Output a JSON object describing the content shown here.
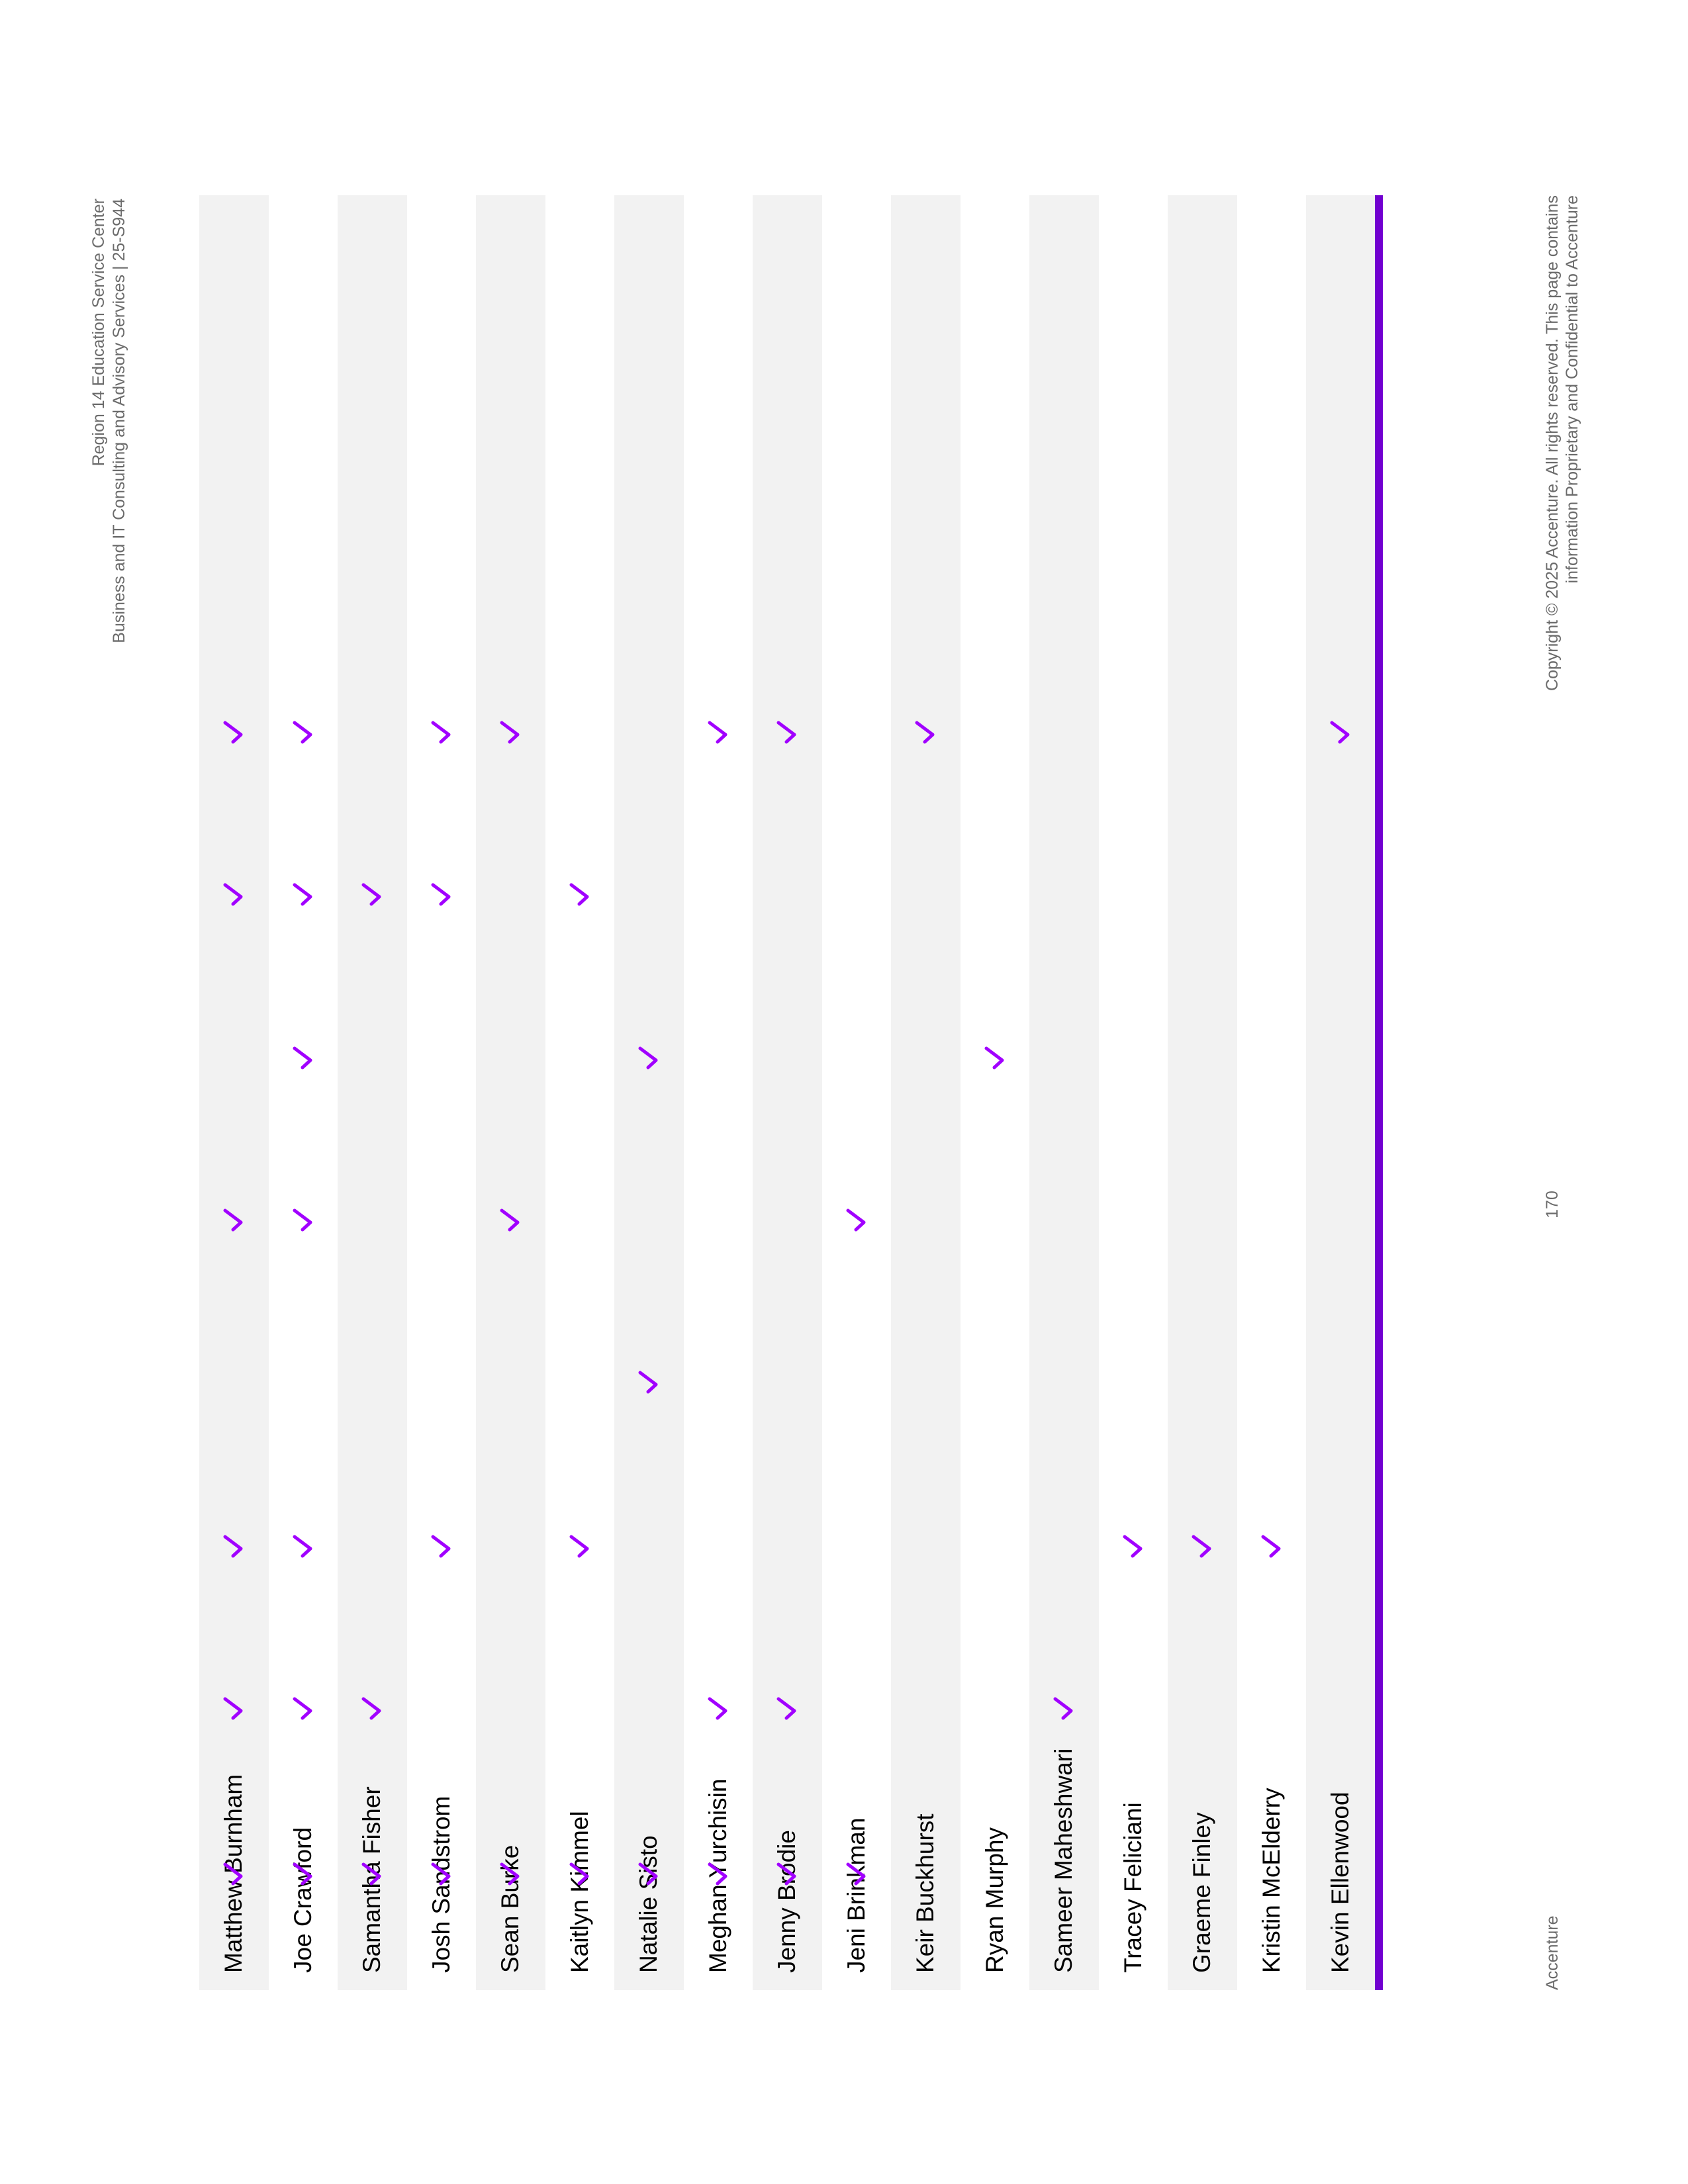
{
  "header": {
    "line1": "Region 14 Education Service Center",
    "line2": "Business and IT Consulting and Advisory Services | 25-S944"
  },
  "accent_color": "#a100ff",
  "rule_color": "#7100d0",
  "check_icon": "checkmark-icon",
  "rows": [
    {
      "name": "Matthew Burnham",
      "checks": [
        true,
        true,
        false,
        true,
        false,
        true,
        true,
        true
      ]
    },
    {
      "name": "Joe Crawford",
      "checks": [
        true,
        true,
        true,
        true,
        false,
        true,
        true,
        true
      ]
    },
    {
      "name": "Samantha Fisher",
      "checks": [
        false,
        true,
        false,
        false,
        false,
        false,
        true,
        true
      ]
    },
    {
      "name": "Josh Sandstrom",
      "checks": [
        true,
        true,
        false,
        false,
        false,
        true,
        false,
        true
      ]
    },
    {
      "name": "Sean Burke",
      "checks": [
        true,
        false,
        false,
        true,
        false,
        false,
        false,
        true
      ]
    },
    {
      "name": "Kaitlyn Kimmel",
      "checks": [
        false,
        true,
        false,
        false,
        false,
        true,
        false,
        true
      ]
    },
    {
      "name": "Natalie Sisto",
      "checks": [
        false,
        false,
        true,
        false,
        true,
        false,
        false,
        true
      ]
    },
    {
      "name": "Meghan Yurchisin",
      "checks": [
        true,
        false,
        false,
        false,
        false,
        false,
        true,
        true
      ]
    },
    {
      "name": "Jenny Brodie",
      "checks": [
        true,
        false,
        false,
        false,
        false,
        false,
        true,
        true
      ]
    },
    {
      "name": "Jeni Brinkman",
      "checks": [
        false,
        false,
        false,
        true,
        false,
        false,
        false,
        true
      ]
    },
    {
      "name": "Keir Buckhurst",
      "checks": [
        true,
        false,
        false,
        false,
        false,
        false,
        false,
        false
      ]
    },
    {
      "name": "Ryan Murphy",
      "checks": [
        false,
        false,
        true,
        false,
        false,
        false,
        false,
        false
      ]
    },
    {
      "name": "Sameer Maheshwari",
      "checks": [
        false,
        false,
        false,
        false,
        false,
        false,
        true,
        false
      ]
    },
    {
      "name": "Tracey Feliciani",
      "checks": [
        false,
        false,
        false,
        false,
        false,
        true,
        false,
        false
      ]
    },
    {
      "name": "Graeme Finley",
      "checks": [
        false,
        false,
        false,
        false,
        false,
        true,
        false,
        false
      ]
    },
    {
      "name": "Kristin McElderry",
      "checks": [
        false,
        false,
        false,
        false,
        false,
        true,
        false,
        false
      ]
    },
    {
      "name": "Kevin Ellenwood",
      "checks": [
        true,
        false,
        false,
        false,
        false,
        false,
        false,
        false
      ]
    }
  ],
  "footer": {
    "left": "Accenture",
    "page_number": "170",
    "copyright_line1": "Copyright © 2025 Accenture. All rights reserved. This page contains",
    "copyright_line2": "information Proprietary and Confidential to Accenture"
  }
}
